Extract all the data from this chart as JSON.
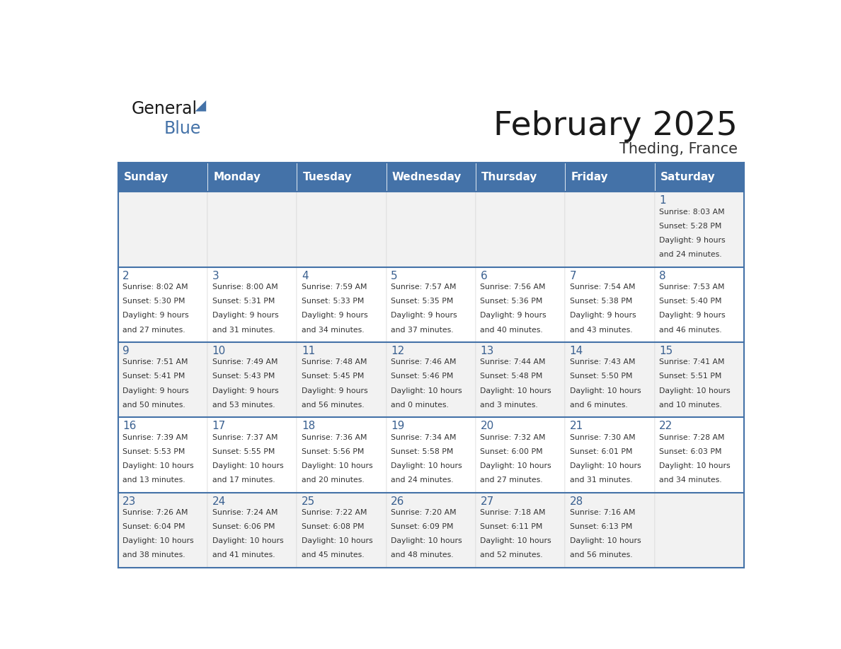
{
  "title": "February 2025",
  "subtitle": "Theding, France",
  "days_of_week": [
    "Sunday",
    "Monday",
    "Tuesday",
    "Wednesday",
    "Thursday",
    "Friday",
    "Saturday"
  ],
  "header_bg": "#4472A8",
  "header_text": "#FFFFFF",
  "cell_bg_odd": "#F2F2F2",
  "cell_bg_even": "#FFFFFF",
  "day_number_color": "#3A6090",
  "text_color": "#333333",
  "border_color": "#4472A8",
  "calendar_data": [
    [
      null,
      null,
      null,
      null,
      null,
      null,
      {
        "day": 1,
        "sunrise": "8:03 AM",
        "sunset": "5:28 PM",
        "daylight": "9 hours and 24 minutes."
      }
    ],
    [
      {
        "day": 2,
        "sunrise": "8:02 AM",
        "sunset": "5:30 PM",
        "daylight": "9 hours and 27 minutes."
      },
      {
        "day": 3,
        "sunrise": "8:00 AM",
        "sunset": "5:31 PM",
        "daylight": "9 hours and 31 minutes."
      },
      {
        "day": 4,
        "sunrise": "7:59 AM",
        "sunset": "5:33 PM",
        "daylight": "9 hours and 34 minutes."
      },
      {
        "day": 5,
        "sunrise": "7:57 AM",
        "sunset": "5:35 PM",
        "daylight": "9 hours and 37 minutes."
      },
      {
        "day": 6,
        "sunrise": "7:56 AM",
        "sunset": "5:36 PM",
        "daylight": "9 hours and 40 minutes."
      },
      {
        "day": 7,
        "sunrise": "7:54 AM",
        "sunset": "5:38 PM",
        "daylight": "9 hours and 43 minutes."
      },
      {
        "day": 8,
        "sunrise": "7:53 AM",
        "sunset": "5:40 PM",
        "daylight": "9 hours and 46 minutes."
      }
    ],
    [
      {
        "day": 9,
        "sunrise": "7:51 AM",
        "sunset": "5:41 PM",
        "daylight": "9 hours and 50 minutes."
      },
      {
        "day": 10,
        "sunrise": "7:49 AM",
        "sunset": "5:43 PM",
        "daylight": "9 hours and 53 minutes."
      },
      {
        "day": 11,
        "sunrise": "7:48 AM",
        "sunset": "5:45 PM",
        "daylight": "9 hours and 56 minutes."
      },
      {
        "day": 12,
        "sunrise": "7:46 AM",
        "sunset": "5:46 PM",
        "daylight": "10 hours and 0 minutes."
      },
      {
        "day": 13,
        "sunrise": "7:44 AM",
        "sunset": "5:48 PM",
        "daylight": "10 hours and 3 minutes."
      },
      {
        "day": 14,
        "sunrise": "7:43 AM",
        "sunset": "5:50 PM",
        "daylight": "10 hours and 6 minutes."
      },
      {
        "day": 15,
        "sunrise": "7:41 AM",
        "sunset": "5:51 PM",
        "daylight": "10 hours and 10 minutes."
      }
    ],
    [
      {
        "day": 16,
        "sunrise": "7:39 AM",
        "sunset": "5:53 PM",
        "daylight": "10 hours and 13 minutes."
      },
      {
        "day": 17,
        "sunrise": "7:37 AM",
        "sunset": "5:55 PM",
        "daylight": "10 hours and 17 minutes."
      },
      {
        "day": 18,
        "sunrise": "7:36 AM",
        "sunset": "5:56 PM",
        "daylight": "10 hours and 20 minutes."
      },
      {
        "day": 19,
        "sunrise": "7:34 AM",
        "sunset": "5:58 PM",
        "daylight": "10 hours and 24 minutes."
      },
      {
        "day": 20,
        "sunrise": "7:32 AM",
        "sunset": "6:00 PM",
        "daylight": "10 hours and 27 minutes."
      },
      {
        "day": 21,
        "sunrise": "7:30 AM",
        "sunset": "6:01 PM",
        "daylight": "10 hours and 31 minutes."
      },
      {
        "day": 22,
        "sunrise": "7:28 AM",
        "sunset": "6:03 PM",
        "daylight": "10 hours and 34 minutes."
      }
    ],
    [
      {
        "day": 23,
        "sunrise": "7:26 AM",
        "sunset": "6:04 PM",
        "daylight": "10 hours and 38 minutes."
      },
      {
        "day": 24,
        "sunrise": "7:24 AM",
        "sunset": "6:06 PM",
        "daylight": "10 hours and 41 minutes."
      },
      {
        "day": 25,
        "sunrise": "7:22 AM",
        "sunset": "6:08 PM",
        "daylight": "10 hours and 45 minutes."
      },
      {
        "day": 26,
        "sunrise": "7:20 AM",
        "sunset": "6:09 PM",
        "daylight": "10 hours and 48 minutes."
      },
      {
        "day": 27,
        "sunrise": "7:18 AM",
        "sunset": "6:11 PM",
        "daylight": "10 hours and 52 minutes."
      },
      {
        "day": 28,
        "sunrise": "7:16 AM",
        "sunset": "6:13 PM",
        "daylight": "10 hours and 56 minutes."
      },
      null
    ]
  ]
}
